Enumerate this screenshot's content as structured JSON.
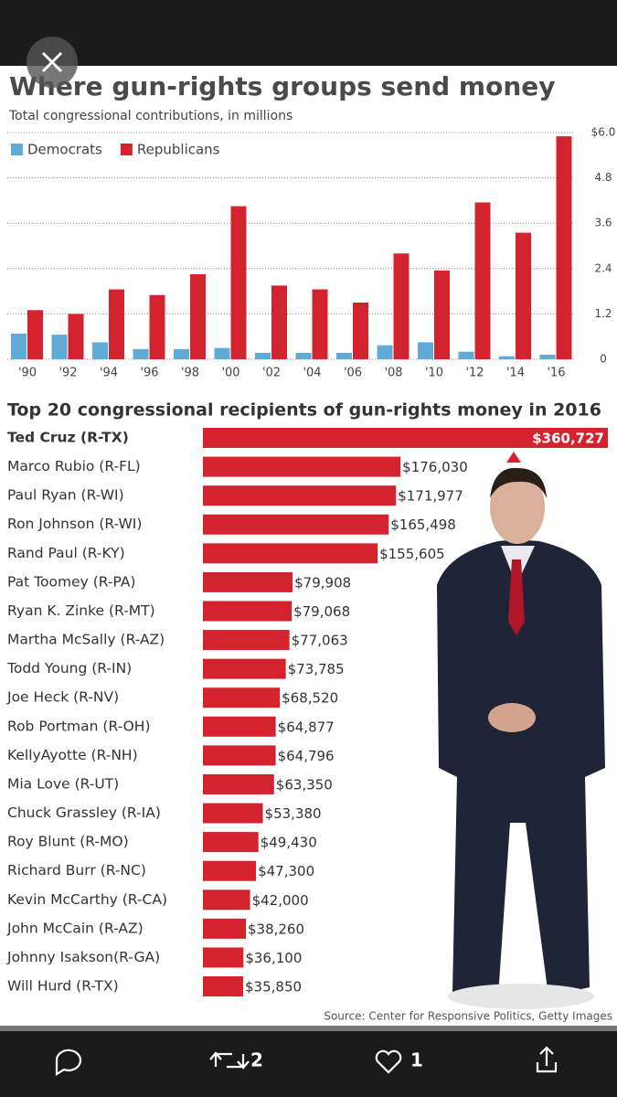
{
  "chart_data": [
    {
      "type": "bar",
      "title": "Where gun-rights groups send money",
      "subtitle": "Total congressional contributions, in millions",
      "categories": [
        "'90",
        "'92",
        "'94",
        "'96",
        "'98",
        "'00",
        "'02",
        "'04",
        "'06",
        "'08",
        "'10",
        "'12",
        "'14",
        "'16"
      ],
      "series": [
        {
          "name": "Democrats",
          "color": "#5fabd6",
          "values": [
            0.68,
            0.65,
            0.45,
            0.27,
            0.27,
            0.3,
            0.17,
            0.17,
            0.17,
            0.37,
            0.45,
            0.2,
            0.08,
            0.12
          ]
        },
        {
          "name": "Republicans",
          "color": "#d2232e",
          "values": [
            1.3,
            1.2,
            1.85,
            1.7,
            2.25,
            4.05,
            1.95,
            1.85,
            1.5,
            2.8,
            2.35,
            4.15,
            3.35,
            5.9
          ]
        }
      ],
      "ylim": [
        0,
        6
      ],
      "yticks": [
        0,
        1.2,
        2.4,
        3.6,
        4.8,
        {
          "value": 6,
          "label": "$6.0"
        }
      ],
      "grid": true,
      "legend": "top-left"
    },
    {
      "type": "hbar",
      "title": "Top 20 congressional recipients of gun-rights money in 2016",
      "color": "#d2232e",
      "categories": [
        "Ted Cruz (R-TX)",
        "Marco Rubio (R-FL)",
        "Paul Ryan (R-WI)",
        "Ron Johnson (R-WI)",
        "Rand Paul (R-KY)",
        "Pat Toomey (R-PA)",
        "Ryan K. Zinke (R-MT)",
        "Martha McSally (R-AZ)",
        "Todd Young (R-IN)",
        "Joe Heck (R-NV)",
        "Rob Portman (R-OH)",
        "KellyAyotte (R-NH)",
        "Mia Love (R-UT)",
        "Chuck Grassley (R-IA)",
        "Roy Blunt (R-MO)",
        "Richard Burr (R-NC)",
        "Kevin McCarthy (R-CA)",
        "John McCain (R-AZ)",
        "Johnny  Isakson(R-GA)",
        "Will Hurd (R-TX)"
      ],
      "values": [
        360727,
        176030,
        171977,
        165498,
        155605,
        79908,
        79068,
        77063,
        73785,
        68520,
        64877,
        64796,
        63350,
        53380,
        49430,
        47300,
        42000,
        38260,
        36100,
        35850
      ],
      "value_labels": [
        "$360,727",
        "$176,030",
        "$171,977",
        "$165,498",
        "$155,605",
        "$79,908",
        "$79,068",
        "$77,063",
        "$73,785",
        "$68,520",
        "$64,877",
        "$64,796",
        "$63,350",
        "$53,380",
        "$49,430",
        "$47,300",
        "$42,000",
        "$38,260",
        "$36,100",
        "$35,850"
      ]
    }
  ],
  "source": "Source: Center for Responsive Politics, Getty Images",
  "ui": {
    "retweets": 2,
    "likes": 1
  }
}
